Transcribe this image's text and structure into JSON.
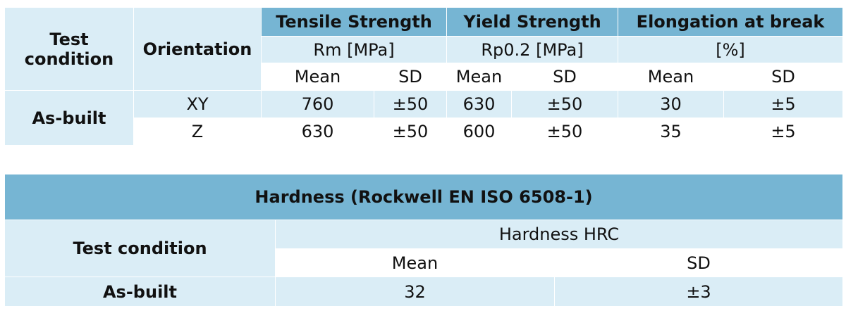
{
  "mechanical_table": {
    "headers": {
      "test_condition": "Test condition",
      "orientation": "Orientation",
      "tensile_strength": "Tensile Strength",
      "yield_strength": "Yield Strength",
      "elongation": "Elongation at break",
      "tensile_unit": "Rm [MPa]",
      "yield_unit": "Rp0.2 [MPa]",
      "elongation_unit": "[%]",
      "mean": "Mean",
      "sd": "SD"
    },
    "condition": "As-built",
    "rows": [
      {
        "orientation": "XY",
        "tensile_mean": "760",
        "tensile_sd": "±50",
        "yield_mean": "630",
        "yield_sd": "±50",
        "elong_mean": "30",
        "elong_sd": "±5"
      },
      {
        "orientation": "Z",
        "tensile_mean": "630",
        "tensile_sd": "±50",
        "yield_mean": "600",
        "yield_sd": "±50",
        "elong_mean": "35",
        "elong_sd": "±5"
      }
    ]
  },
  "hardness_table": {
    "title": "Hardness (Rockwell EN ISO 6508-1)",
    "test_condition": "Test condition",
    "subheader": "Hardness HRC",
    "mean_label": "Mean",
    "sd_label": "SD",
    "condition": "As-built",
    "mean": "32",
    "sd": "±3"
  },
  "colors": {
    "header_blue": "#76b5d3",
    "light_blue": "#daedf6",
    "white": "#ffffff"
  }
}
